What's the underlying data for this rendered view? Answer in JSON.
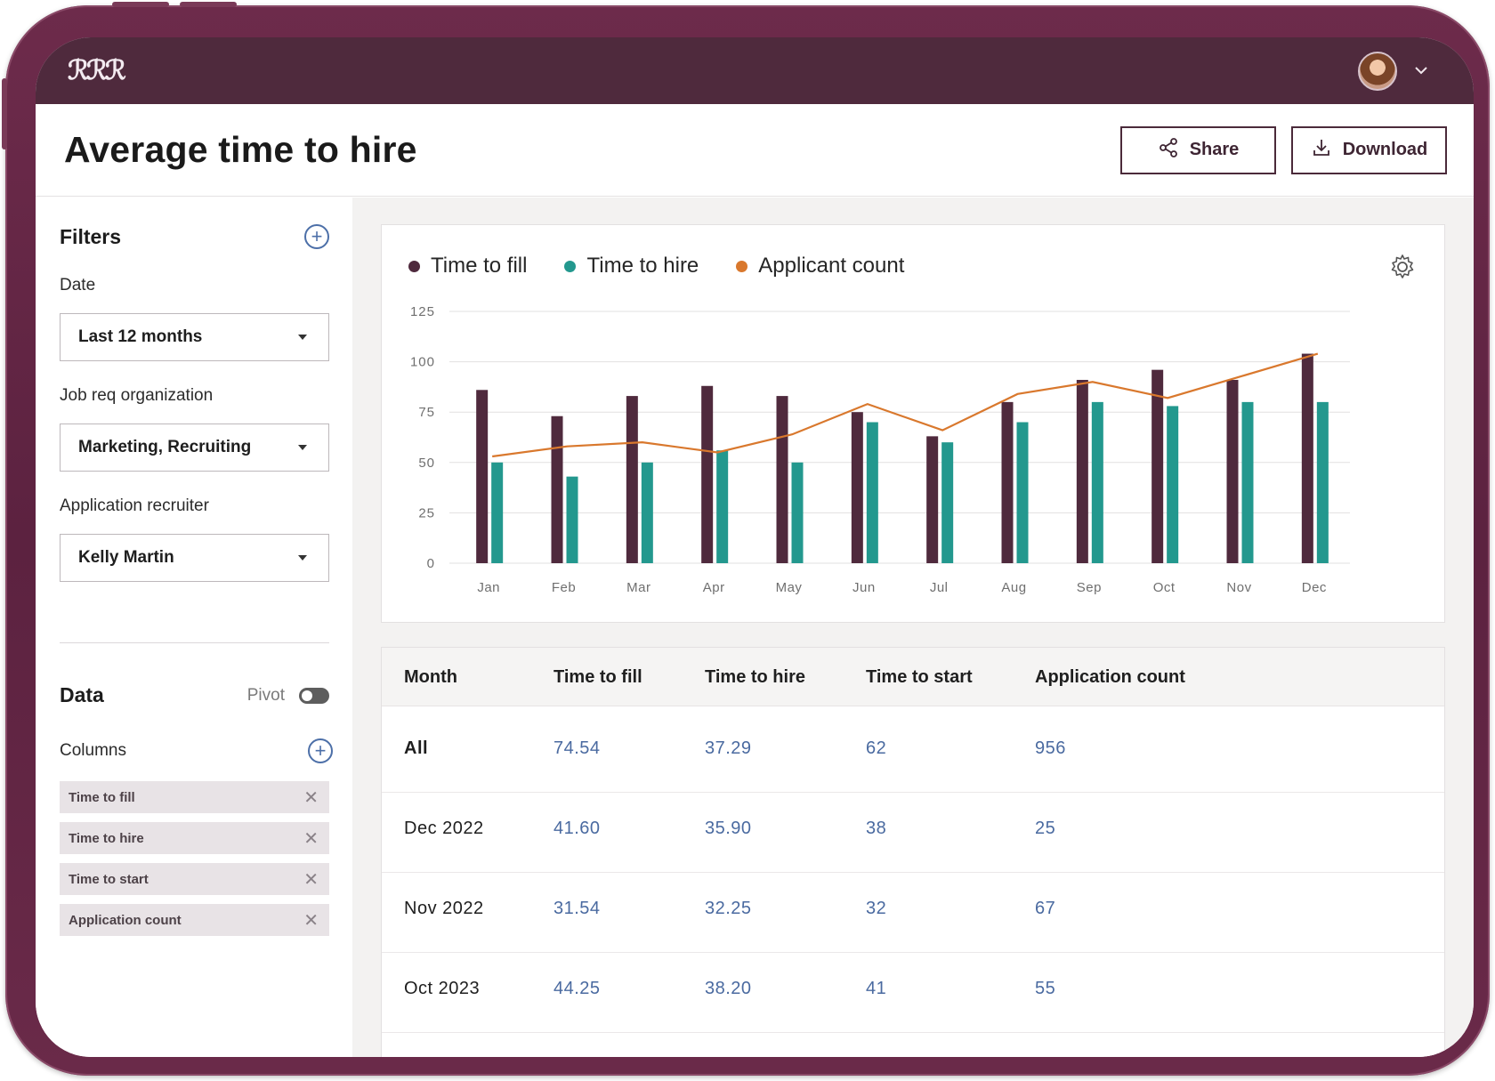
{
  "header": {
    "logo": "ℛℛℛ",
    "title": "Average time to hire",
    "share_label": "Share",
    "download_label": "Download"
  },
  "sidebar": {
    "filters_title": "Filters",
    "date_label": "Date",
    "date_value": "Last 12 months",
    "org_label": "Job req organization",
    "org_value": "Marketing, Recruiting",
    "recruiter_label": "Application recruiter",
    "recruiter_value": "Kelly Martin",
    "data_title": "Data",
    "pivot_label": "Pivot",
    "pivot_on": false,
    "columns_label": "Columns",
    "columns": [
      "Time to fill",
      "Time to hire",
      "Time to start",
      "Application count"
    ]
  },
  "chart_data": {
    "type": "bar",
    "categories": [
      "Jan",
      "Feb",
      "Mar",
      "Apr",
      "May",
      "Jun",
      "Jul",
      "Aug",
      "Sep",
      "Oct",
      "Nov",
      "Dec"
    ],
    "series": [
      {
        "name": "Time to fill",
        "kind": "bar",
        "color": "#4f2a3d",
        "values": [
          86,
          73,
          83,
          88,
          83,
          75,
          63,
          80,
          91,
          96,
          91,
          104
        ]
      },
      {
        "name": "Time to hire",
        "kind": "bar",
        "color": "#23988e",
        "values": [
          50,
          43,
          50,
          56,
          50,
          70,
          60,
          70,
          80,
          78,
          80,
          80
        ]
      },
      {
        "name": "Applicant count",
        "kind": "line",
        "color": "#d9782d",
        "values": [
          53,
          58,
          60,
          55,
          64,
          79,
          66,
          84,
          90,
          82,
          93,
          104
        ]
      }
    ],
    "yticks": [
      0,
      25,
      50,
      75,
      100,
      125
    ],
    "ylim": [
      0,
      125
    ],
    "grid": true,
    "legend": "top-left"
  },
  "table": {
    "headers": [
      "Month",
      "Time to fill",
      "Time to hire",
      "Time to start",
      "Application count"
    ],
    "rows": [
      {
        "month": "All",
        "fill": "74.54",
        "hire": "37.29",
        "start": "62",
        "count": "956"
      },
      {
        "month": "Dec 2022",
        "fill": "41.60",
        "hire": "35.90",
        "start": "38",
        "count": "25"
      },
      {
        "month": "Nov 2022",
        "fill": "31.54",
        "hire": "32.25",
        "start": "32",
        "count": "67"
      },
      {
        "month": "Oct 2023",
        "fill": "44.25",
        "hire": "38.20",
        "start": "41",
        "count": "55"
      }
    ]
  },
  "colors": {
    "brand": "#4f2a3d",
    "teal": "#23988e",
    "orange": "#d9782d",
    "link": "#4a6aa0"
  }
}
